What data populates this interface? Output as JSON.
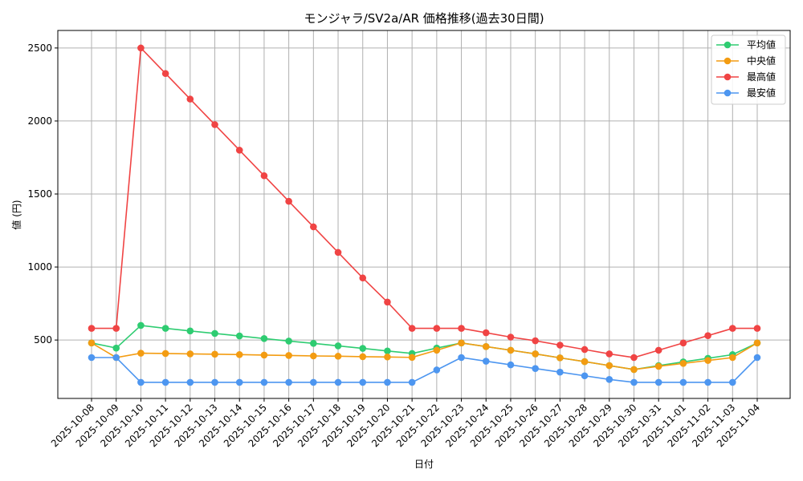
{
  "chart_data": {
    "type": "line",
    "title": "モンジャラ/SV2a/AR 価格推移(過去30日間)",
    "xlabel": "日付",
    "ylabel": "値 (円)",
    "x": [
      "2025-10-08",
      "2025-10-09",
      "2025-10-10",
      "2025-10-11",
      "2025-10-12",
      "2025-10-13",
      "2025-10-14",
      "2025-10-15",
      "2025-10-16",
      "2025-10-17",
      "2025-10-18",
      "2025-10-19",
      "2025-10-20",
      "2025-10-21",
      "2025-10-22",
      "2025-10-23",
      "2025-10-24",
      "2025-10-25",
      "2025-10-26",
      "2025-10-27",
      "2025-10-28",
      "2025-10-29",
      "2025-10-30",
      "2025-10-31",
      "2025-11-01",
      "2025-11-02",
      "2025-11-03",
      "2025-11-04"
    ],
    "yticks": [
      500,
      1000,
      1500,
      2000,
      2500
    ],
    "ylim": [
      100,
      2620
    ],
    "grid": true,
    "legend_position": "top-right",
    "series": [
      {
        "name": "平均値",
        "color": "#2ecc71",
        "values": [
          480,
          445,
          600,
          580,
          562,
          545,
          528,
          510,
          493,
          477,
          460,
          443,
          425,
          408,
          445,
          480,
          455,
          430,
          405,
          378,
          352,
          325,
          298,
          325,
          350,
          375,
          400,
          480
        ]
      },
      {
        "name": "中央値",
        "color": "#f39c12",
        "values": [
          480,
          380,
          410,
          408,
          405,
          403,
          400,
          397,
          394,
          391,
          389,
          386,
          384,
          381,
          430,
          480,
          455,
          430,
          405,
          378,
          352,
          325,
          298,
          320,
          340,
          360,
          380,
          480
        ]
      },
      {
        "name": "最高値",
        "color": "#f04444",
        "values": [
          580,
          580,
          2500,
          2325,
          2150,
          1975,
          1800,
          1625,
          1450,
          1275,
          1100,
          925,
          760,
          580,
          580,
          580,
          550,
          520,
          495,
          465,
          435,
          405,
          380,
          430,
          480,
          530,
          580,
          580
        ]
      },
      {
        "name": "最安値",
        "color": "#4d96f0",
        "values": [
          380,
          380,
          210,
          210,
          210,
          210,
          210,
          210,
          210,
          210,
          210,
          210,
          210,
          210,
          295,
          380,
          355,
          330,
          305,
          280,
          255,
          230,
          210,
          210,
          210,
          210,
          210,
          380
        ]
      }
    ]
  }
}
